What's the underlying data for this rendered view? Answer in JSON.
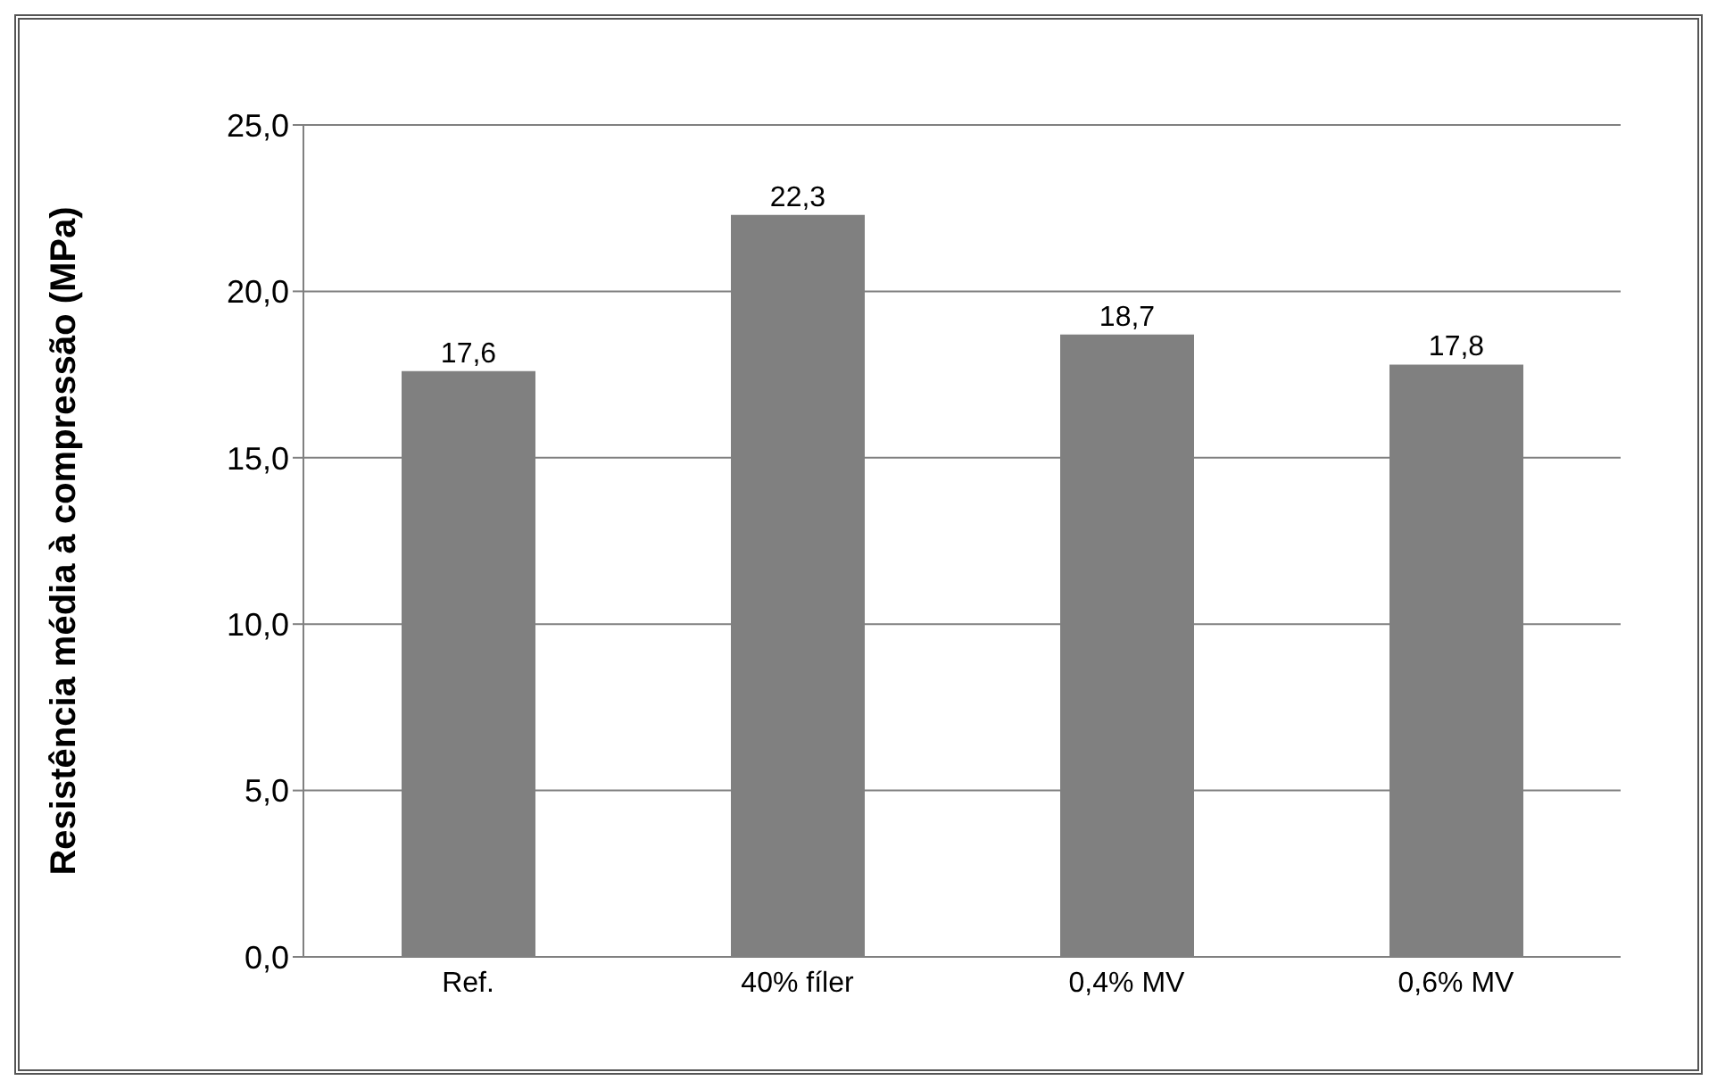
{
  "chart_data": {
    "type": "bar",
    "ylabel": "Resistência média  à compressão (MPa)",
    "categories": [
      "Ref.",
      "40% fíler",
      "0,4% MV",
      "0,6% MV"
    ],
    "values": [
      17.6,
      22.3,
      18.7,
      17.8
    ],
    "value_labels": [
      "17,6",
      "22,3",
      "18,7",
      "17,8"
    ],
    "color": "#808080",
    "ylim": [
      0,
      25
    ],
    "yticks": [
      {
        "value": 0,
        "label": "0,0"
      },
      {
        "value": 5,
        "label": "5,0"
      },
      {
        "value": 10,
        "label": "10,0"
      },
      {
        "value": 15,
        "label": "15,0"
      },
      {
        "value": 20,
        "label": "20,0"
      },
      {
        "value": 25,
        "label": "25,0"
      }
    ],
    "grid": "y"
  }
}
